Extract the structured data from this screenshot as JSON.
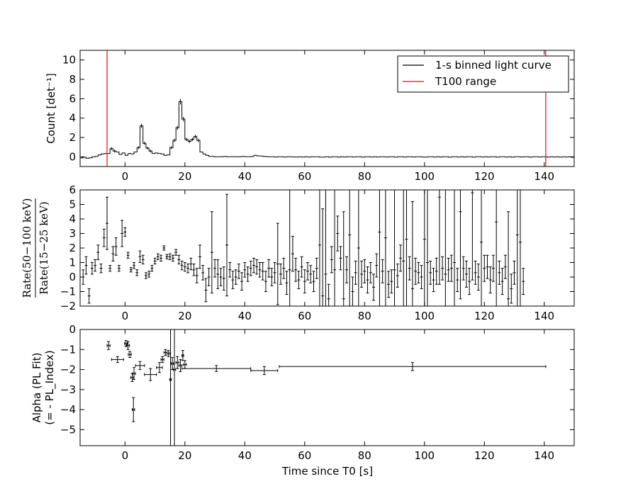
{
  "chart_data": [
    {
      "type": "line",
      "name": "light-curve-panel",
      "ylabel": "Count [det⁻¹]",
      "xlim": [
        -15,
        150
      ],
      "ylim": [
        -1,
        11
      ],
      "yticks": [
        0,
        2,
        4,
        6,
        8,
        10
      ],
      "xticks": [
        0,
        20,
        40,
        60,
        80,
        100,
        120,
        140
      ],
      "legend": {
        "placement": "top-right",
        "entries": [
          {
            "label": "1-s binned light curve",
            "color": "#000000"
          },
          {
            "label": "T100 range",
            "color": "#ff0000"
          }
        ]
      },
      "t100_range": [
        -6,
        140.5
      ],
      "series_x_start": -15,
      "series_x_step": 1,
      "values": [
        -0.1,
        -0.05,
        -0.15,
        -0.1,
        0.0,
        0.05,
        0.2,
        0.3,
        0.35,
        0.35,
        0.85,
        0.6,
        0.5,
        0.25,
        0.4,
        0.15,
        0.35,
        0.3,
        0.5,
        0.95,
        3.2,
        1.4,
        0.9,
        0.6,
        0.35,
        0.4,
        0.35,
        0.3,
        0.15,
        0.2,
        0.95,
        1.7,
        3.0,
        5.7,
        3.9,
        1.8,
        1.6,
        1.8,
        2.1,
        1.7,
        0.5,
        0.3,
        0.15,
        0.05,
        0.05,
        0.0,
        0.0,
        0.02,
        0.05,
        0.0,
        0.02,
        0.02,
        0.0,
        0.02,
        0.05,
        0.02,
        0.02,
        0.03,
        0.15,
        0.1,
        0.08,
        0.05,
        0.02,
        0.0,
        0.0,
        -0.02,
        0.0,
        0.0,
        -0.02,
        0.0,
        0.0,
        -0.02,
        -0.02,
        0.0,
        -0.02,
        0.0,
        -0.02,
        0.0,
        0.0,
        0.0,
        -0.03,
        -0.02,
        0.0,
        -0.03,
        0.0,
        0.0,
        -0.03,
        0.0,
        -0.02,
        0.0,
        0.0,
        -0.02,
        0.0,
        0.0,
        -0.03,
        0.0,
        0.0,
        -0.02,
        0.0,
        -0.02,
        0.0,
        0.0,
        -0.02,
        0.0,
        0.0,
        -0.03,
        0.0,
        0.0,
        -0.02,
        0.0,
        0.0,
        -0.02,
        0.0,
        0.0,
        -0.02,
        -0.03,
        0.0,
        0.0,
        -0.02,
        0.0,
        -0.02,
        0.0,
        0.0,
        -0.03,
        0.0,
        0.0,
        -0.02,
        0.0,
        -0.02,
        0.0,
        0.0,
        -0.03,
        0.0,
        0.0,
        -0.02,
        0.0,
        -0.02,
        0.0,
        0.0,
        -0.03,
        0.0,
        0.0,
        -0.02,
        0.0,
        -0.03,
        0.0,
        0.0,
        -0.02,
        0.0,
        0.0,
        -0.03,
        0.0,
        0.0,
        -0.02,
        0.0,
        0.0,
        -0.03,
        0.0,
        -0.02,
        0.0,
        -0.03,
        0.0,
        -0.02,
        0.0,
        -0.05
      ]
    },
    {
      "type": "scatter",
      "name": "hardness-ratio-panel",
      "ylabel_numerator": "Rate(50−100 keV)",
      "ylabel_denominator": "Rate(15−25 keV)",
      "xlim": [
        -15,
        150
      ],
      "ylim": [
        -2,
        6
      ],
      "yticks": [
        -2,
        -1,
        0,
        1,
        2,
        3,
        4,
        5,
        6
      ],
      "xticks": [
        0,
        20,
        40,
        60,
        80,
        100,
        120,
        140
      ],
      "points": [
        {
          "x": -14,
          "y": 0.0,
          "e": 0.5
        },
        {
          "x": -13,
          "y": 0.8,
          "e": 0.6
        },
        {
          "x": -12,
          "y": -1.3,
          "e": 0.5
        },
        {
          "x": -11,
          "y": 0.6,
          "e": 0.4
        },
        {
          "x": -10,
          "y": 0.8,
          "e": 0.4
        },
        {
          "x": -9,
          "y": 1.7,
          "e": 0.5
        },
        {
          "x": -8,
          "y": 0.6,
          "e": 0.3
        },
        {
          "x": -7,
          "y": 2.7,
          "e": 0.6
        },
        {
          "x": -6,
          "y": 3.7,
          "e": 1.8
        },
        {
          "x": -5,
          "y": 0.6,
          "e": 0.2
        },
        {
          "x": -4,
          "y": 1.6,
          "e": 0.5
        },
        {
          "x": -3,
          "y": 2.1,
          "e": 0.6
        },
        {
          "x": -2,
          "y": 0.6,
          "e": 0.2
        },
        {
          "x": -1,
          "y": 3.0,
          "e": 0.9
        },
        {
          "x": 0,
          "y": 3.1,
          "e": 0.3
        },
        {
          "x": 1,
          "y": 1.5,
          "e": 0.2
        },
        {
          "x": 2,
          "y": 0.5,
          "e": 0.15
        },
        {
          "x": 3,
          "y": 0.8,
          "e": 0.2
        },
        {
          "x": 4,
          "y": 0.3,
          "e": 0.2
        },
        {
          "x": 5,
          "y": 1.4,
          "e": 0.4
        },
        {
          "x": 6,
          "y": 1.2,
          "e": 0.3
        },
        {
          "x": 7,
          "y": 0.1,
          "e": 0.2
        },
        {
          "x": 8,
          "y": 0.2,
          "e": 0.2
        },
        {
          "x": 9,
          "y": 0.6,
          "e": 0.2
        },
        {
          "x": 10,
          "y": 1.1,
          "e": 0.2
        },
        {
          "x": 11,
          "y": 1.4,
          "e": 0.2
        },
        {
          "x": 12,
          "y": 1.3,
          "e": 0.2
        },
        {
          "x": 13,
          "y": 2.0,
          "e": 0.15
        },
        {
          "x": 14,
          "y": 1.4,
          "e": 0.15
        },
        {
          "x": 15,
          "y": 1.4,
          "e": 0.2
        },
        {
          "x": 16,
          "y": 1.3,
          "e": 0.2
        },
        {
          "x": 17,
          "y": 1.7,
          "e": 0.2
        },
        {
          "x": 18,
          "y": 1.2,
          "e": 0.3
        },
        {
          "x": 19,
          "y": 0.8,
          "e": 0.3
        },
        {
          "x": 20,
          "y": 0.7,
          "e": 0.3
        },
        {
          "x": 21,
          "y": 0.6,
          "e": 0.3
        },
        {
          "x": 22,
          "y": 0.9,
          "e": 0.4
        },
        {
          "x": 23,
          "y": 0.5,
          "e": 0.4
        },
        {
          "x": 24,
          "y": 0.1,
          "e": 0.5
        },
        {
          "x": 25,
          "y": 1.4,
          "e": 0.8
        },
        {
          "x": 26,
          "y": 0.3,
          "e": 0.5
        },
        {
          "x": 27,
          "y": -0.9,
          "e": 0.8
        },
        {
          "x": 28,
          "y": 0.0,
          "e": 0.6
        },
        {
          "x": 29,
          "y": 1.7,
          "e": 2.8
        },
        {
          "x": 30,
          "y": 0.6,
          "e": 0.6
        },
        {
          "x": 31,
          "y": 0.2,
          "e": 1.0
        },
        {
          "x": 32,
          "y": 0.0,
          "e": 0.6
        },
        {
          "x": 33,
          "y": -0.1,
          "e": 0.8
        },
        {
          "x": 34,
          "y": 2.2,
          "e": 3.5
        },
        {
          "x": 35,
          "y": 0.5,
          "e": 0.5
        },
        {
          "x": 36,
          "y": -0.2,
          "e": 0.6
        },
        {
          "x": 37,
          "y": 0.0,
          "e": 0.5
        },
        {
          "x": 38,
          "y": 0.4,
          "e": 0.5
        },
        {
          "x": 39,
          "y": -0.3,
          "e": 0.6
        },
        {
          "x": 40,
          "y": 0.5,
          "e": 0.5
        },
        {
          "x": 41,
          "y": 0.2,
          "e": 0.5
        },
        {
          "x": 42,
          "y": 0.6,
          "e": 0.5
        },
        {
          "x": 43,
          "y": 0.8,
          "e": 0.5
        },
        {
          "x": 44,
          "y": 0.7,
          "e": 0.5
        },
        {
          "x": 45,
          "y": 0.5,
          "e": 0.5
        },
        {
          "x": 46,
          "y": 0.4,
          "e": 0.6
        },
        {
          "x": 47,
          "y": -0.3,
          "e": 0.7
        },
        {
          "x": 48,
          "y": 0.6,
          "e": 0.6
        },
        {
          "x": 49,
          "y": 0.0,
          "e": 0.6
        },
        {
          "x": 50,
          "y": 0.3,
          "e": 0.7
        },
        {
          "x": 51,
          "y": 0.9,
          "e": 2.8
        },
        {
          "x": 52,
          "y": 0.2,
          "e": 0.7
        },
        {
          "x": 53,
          "y": 0.6,
          "e": 0.7
        },
        {
          "x": 54,
          "y": -0.4,
          "e": 0.8
        },
        {
          "x": 55,
          "y": 0.5,
          "e": 6.0
        },
        {
          "x": 56,
          "y": 1.6,
          "e": 1.2
        },
        {
          "x": 57,
          "y": 0.5,
          "e": 0.8
        },
        {
          "x": 58,
          "y": -0.2,
          "e": 0.6
        },
        {
          "x": 59,
          "y": 0.7,
          "e": 0.7
        },
        {
          "x": 60,
          "y": -0.3,
          "e": 0.8
        },
        {
          "x": 61,
          "y": 0.4,
          "e": 0.6
        },
        {
          "x": 62,
          "y": 0.2,
          "e": 0.6
        },
        {
          "x": 63,
          "y": -0.3,
          "e": 0.7
        },
        {
          "x": 64,
          "y": 0.6,
          "e": 0.7
        },
        {
          "x": 65,
          "y": 2.2,
          "e": 6.0
        },
        {
          "x": 66,
          "y": -1.3,
          "e": 6.0
        },
        {
          "x": 67,
          "y": 0.2,
          "e": 6.0
        },
        {
          "x": 68,
          "y": -1.5,
          "e": 1.0
        },
        {
          "x": 69,
          "y": 1.2,
          "e": 0.9
        },
        {
          "x": 70,
          "y": 0.5,
          "e": 6.0
        },
        {
          "x": 71,
          "y": 3.0,
          "e": 1.2
        },
        {
          "x": 72,
          "y": 1.3,
          "e": 0.8
        },
        {
          "x": 73,
          "y": -1.5,
          "e": 6.0
        },
        {
          "x": 74,
          "y": 0.5,
          "e": 0.9
        },
        {
          "x": 75,
          "y": 2.9,
          "e": 6.0
        },
        {
          "x": 76,
          "y": -1.0,
          "e": 1.0
        },
        {
          "x": 77,
          "y": 0.3,
          "e": 0.8
        },
        {
          "x": 78,
          "y": 2.0,
          "e": 6.0
        },
        {
          "x": 79,
          "y": 0.2,
          "e": 0.9
        },
        {
          "x": 80,
          "y": 0.4,
          "e": 0.8
        },
        {
          "x": 81,
          "y": -0.2,
          "e": 0.9
        },
        {
          "x": 82,
          "y": 0.3,
          "e": 0.7
        },
        {
          "x": 83,
          "y": -0.7,
          "e": 0.9
        },
        {
          "x": 84,
          "y": 0.8,
          "e": 0.8
        },
        {
          "x": 85,
          "y": 3.1,
          "e": 6.0
        },
        {
          "x": 86,
          "y": 0.4,
          "e": 0.8
        },
        {
          "x": 87,
          "y": 2.7,
          "e": 6.0
        },
        {
          "x": 88,
          "y": -0.5,
          "e": 0.9
        },
        {
          "x": 89,
          "y": -0.3,
          "e": 0.8
        },
        {
          "x": 90,
          "y": 0.5,
          "e": 6.0
        },
        {
          "x": 91,
          "y": 0.1,
          "e": 0.8
        },
        {
          "x": 92,
          "y": 1.3,
          "e": 0.9
        },
        {
          "x": 93,
          "y": 1.1,
          "e": 6.0
        },
        {
          "x": 94,
          "y": 2.6,
          "e": 6.0
        },
        {
          "x": 95,
          "y": 0.6,
          "e": 0.8
        },
        {
          "x": 96,
          "y": -0.8,
          "e": 6.0
        },
        {
          "x": 97,
          "y": 0.4,
          "e": 0.9
        },
        {
          "x": 98,
          "y": 0.3,
          "e": 0.7
        },
        {
          "x": 99,
          "y": 0.0,
          "e": 0.8
        },
        {
          "x": 100,
          "y": 2.6,
          "e": 6.0
        },
        {
          "x": 101,
          "y": 1.0,
          "e": 6.0
        },
        {
          "x": 102,
          "y": 0.3,
          "e": 0.8
        },
        {
          "x": 103,
          "y": -0.2,
          "e": 0.8
        },
        {
          "x": 104,
          "y": 0.4,
          "e": 0.9
        },
        {
          "x": 105,
          "y": 5.5,
          "e": 6.0
        },
        {
          "x": 106,
          "y": 0.6,
          "e": 0.8
        },
        {
          "x": 107,
          "y": 0.2,
          "e": 6.0
        },
        {
          "x": 108,
          "y": 0.5,
          "e": 0.8
        },
        {
          "x": 109,
          "y": 0.6,
          "e": 0.9
        },
        {
          "x": 110,
          "y": 1.0,
          "e": 6.0
        },
        {
          "x": 111,
          "y": -0.2,
          "e": 0.8
        },
        {
          "x": 112,
          "y": 4.5,
          "e": 6.0
        },
        {
          "x": 113,
          "y": 0.6,
          "e": 0.8
        },
        {
          "x": 114,
          "y": 0.2,
          "e": 0.9
        },
        {
          "x": 115,
          "y": -0.3,
          "e": 0.9
        },
        {
          "x": 116,
          "y": 5.8,
          "e": 6.0
        },
        {
          "x": 117,
          "y": 0.3,
          "e": 0.8
        },
        {
          "x": 118,
          "y": 0.0,
          "e": 0.9
        },
        {
          "x": 119,
          "y": 2.4,
          "e": 6.0
        },
        {
          "x": 120,
          "y": 0.6,
          "e": 0.9
        },
        {
          "x": 121,
          "y": 0.7,
          "e": 0.8
        },
        {
          "x": 122,
          "y": -0.2,
          "e": 0.9
        },
        {
          "x": 123,
          "y": 0.6,
          "e": 0.9
        },
        {
          "x": 124,
          "y": 3.8,
          "e": 6.0
        },
        {
          "x": 125,
          "y": 0.3,
          "e": 0.8
        },
        {
          "x": 126,
          "y": -0.3,
          "e": 0.9
        },
        {
          "x": 127,
          "y": 0.7,
          "e": 0.8
        },
        {
          "x": 128,
          "y": -1.5,
          "e": 6.0
        },
        {
          "x": 129,
          "y": -0.8,
          "e": 1.0
        },
        {
          "x": 130,
          "y": 0.3,
          "e": 0.8
        },
        {
          "x": 131,
          "y": 2.9,
          "e": 6.0
        },
        {
          "x": 132,
          "y": 2.4,
          "e": 6.0
        },
        {
          "x": 133,
          "y": -0.3,
          "e": 0.9
        }
      ]
    },
    {
      "type": "scatter",
      "name": "alpha-panel",
      "xlabel": "Time since T0 [s]",
      "ylabel_line1": "Alpha (PL Fit)",
      "ylabel_line2": "(= - PL_Index)",
      "xlim": [
        -15,
        150
      ],
      "ylim": [
        -5.8,
        0
      ],
      "yticks": [
        -5,
        -4,
        -3,
        -2,
        -1,
        0
      ],
      "xticks": [
        0,
        20,
        40,
        60,
        80,
        100,
        120,
        140
      ],
      "points": [
        {
          "x": -5.5,
          "y": -0.8,
          "xe": 0.5,
          "ye": 0.2
        },
        {
          "x": -2.5,
          "y": -1.5,
          "xe": 2.0,
          "ye": 0.15
        },
        {
          "x": 0.3,
          "y": -0.7,
          "xe": 0.5,
          "ye": 0.15
        },
        {
          "x": 1.0,
          "y": -0.8,
          "xe": 0.5,
          "ye": 0.2
        },
        {
          "x": 1.6,
          "y": -1.25,
          "xe": 0.5,
          "ye": 0.15
        },
        {
          "x": 2.4,
          "y": -2.4,
          "xe": 0.5,
          "ye": 0.2
        },
        {
          "x": 3.0,
          "y": -2.2,
          "xe": 0.5,
          "ye": 0.3
        },
        {
          "x": 2.8,
          "y": -4.0,
          "xe": 0.4,
          "ye": 0.6
        },
        {
          "x": 5.0,
          "y": -1.8,
          "xe": 1.5,
          "ye": 0.2
        },
        {
          "x": 8.5,
          "y": -2.25,
          "xe": 2.0,
          "ye": 0.3
        },
        {
          "x": 11.5,
          "y": -1.9,
          "xe": 1.0,
          "ye": 0.25
        },
        {
          "x": 12.5,
          "y": -1.5,
          "xe": 0.5,
          "ye": 0.15
        },
        {
          "x": 13.5,
          "y": -1.15,
          "xe": 0.5,
          "ye": 0.15
        },
        {
          "x": 14.5,
          "y": -1.2,
          "xe": 0.5,
          "ye": 0.15
        },
        {
          "x": 15.2,
          "y": -2.5,
          "xe": 0.3,
          "ye": 5.0
        },
        {
          "x": 15.8,
          "y": -1.7,
          "xe": 0.4,
          "ye": 0.3
        },
        {
          "x": 16.5,
          "y": -2.0,
          "xe": 0.4,
          "ye": 5.0
        },
        {
          "x": 17.5,
          "y": -1.65,
          "xe": 0.5,
          "ye": 0.3
        },
        {
          "x": 18.5,
          "y": -1.8,
          "xe": 0.5,
          "ye": 0.3
        },
        {
          "x": 19.3,
          "y": -1.3,
          "xe": 0.3,
          "ye": 0.25
        },
        {
          "x": 20.0,
          "y": -1.75,
          "xe": 0.5,
          "ye": 0.2
        },
        {
          "x": 30.5,
          "y": -1.95,
          "xe": 11.5,
          "ye": 0.15
        },
        {
          "x": 46.5,
          "y": -2.05,
          "xe": 4.5,
          "ye": 0.2
        },
        {
          "x": 96.0,
          "y": -1.85,
          "xe": 44.5,
          "ye": 0.2
        }
      ]
    }
  ]
}
